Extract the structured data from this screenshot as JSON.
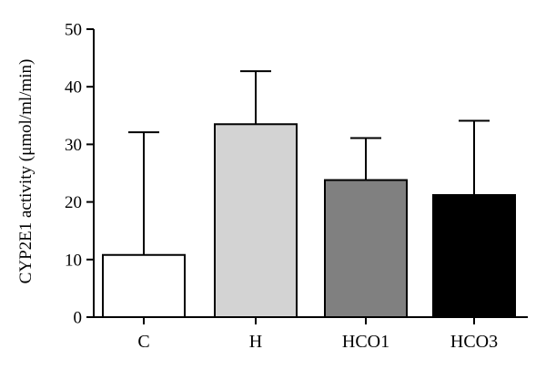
{
  "chart_data": {
    "type": "bar",
    "title": "",
    "xlabel": "",
    "ylabel": "CYP2E1 activity (μmol/ml/min)",
    "ylim": [
      0,
      50
    ],
    "yticks": [
      0,
      10,
      20,
      30,
      40,
      50
    ],
    "grid": false,
    "legend": "none",
    "error_bars": "upper",
    "categories": [
      "C",
      "H",
      "HCO1",
      "HCO3"
    ],
    "values": [
      10.8,
      33.5,
      23.8,
      21.2
    ],
    "errors": [
      21.3,
      9.2,
      7.3,
      12.9
    ],
    "bar_colors": [
      "#ffffff",
      "#d3d3d3",
      "#808080",
      "#000000"
    ],
    "edge_color": "#000000"
  }
}
